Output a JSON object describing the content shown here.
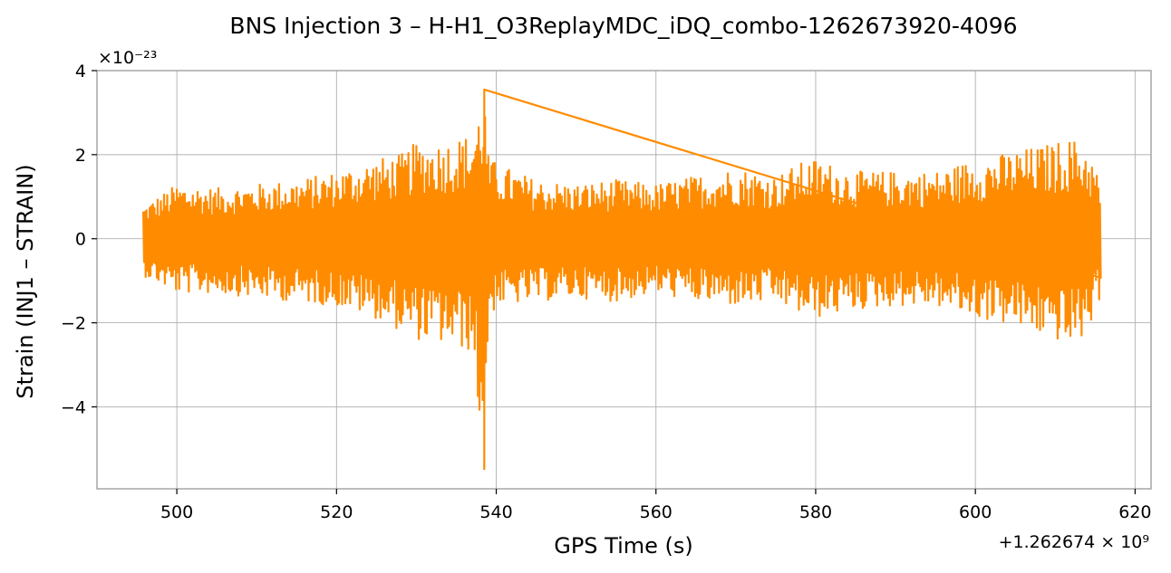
{
  "chart_data": {
    "type": "line",
    "title": "BNS Injection 3 – H-H1_O3ReplayMDC_iDQ_combo-1262673920-4096",
    "xlabel": "GPS Time (s)",
    "ylabel": "Strain (INJ1 – STRAIN)",
    "x_offset_label": "+1.262674 × 10⁹",
    "y_scale_label": "×10⁻²³",
    "xlim": [
      490,
      622
    ],
    "ylim": [
      -5.95,
      4.0
    ],
    "x_ticks": [
      500,
      520,
      540,
      560,
      580,
      600,
      620
    ],
    "y_ticks": [
      -4,
      -2,
      0,
      2,
      4
    ],
    "x_tick_labels": [
      "500",
      "520",
      "540",
      "560",
      "580",
      "600",
      "620"
    ],
    "y_tick_labels": [
      "−4",
      "−2",
      "0",
      "2",
      "4"
    ],
    "grid": true,
    "series": [
      {
        "color": "#ff8c00",
        "x_range": [
          495.8,
          615.8
        ],
        "sample_step": 0.1,
        "envelope_x": [
          496,
          500,
          505,
          510,
          515,
          520,
          525,
          528,
          530,
          533,
          535,
          537,
          538.5,
          539,
          540,
          545,
          550,
          555,
          560,
          565,
          570,
          575,
          578,
          580,
          585,
          590,
          595,
          600,
          603,
          605,
          608,
          610,
          612,
          614,
          615.8
        ],
        "envelope_upper": [
          0.8,
          1.3,
          1.2,
          1.3,
          1.4,
          1.6,
          1.9,
          2.0,
          2.3,
          2.3,
          2.4,
          2.5,
          3.55,
          2.0,
          1.8,
          1.4,
          1.3,
          1.4,
          1.3,
          1.5,
          1.7,
          1.5,
          1.8,
          1.9,
          1.6,
          1.6,
          1.6,
          1.9,
          2.0,
          2.1,
          2.2,
          2.3,
          2.4,
          2.2,
          1.3
        ],
        "envelope_lower": [
          -0.9,
          -1.3,
          -1.3,
          -1.4,
          -1.5,
          -1.6,
          -1.9,
          -2.2,
          -2.4,
          -2.5,
          -2.6,
          -2.7,
          -5.5,
          -2.0,
          -1.6,
          -1.5,
          -1.4,
          -1.5,
          -1.3,
          -1.5,
          -1.6,
          -1.5,
          -1.8,
          -1.9,
          -1.7,
          -1.6,
          -1.6,
          -1.9,
          -2.0,
          -2.1,
          -2.3,
          -2.4,
          -2.6,
          -2.3,
          -1.3
        ]
      }
    ]
  }
}
